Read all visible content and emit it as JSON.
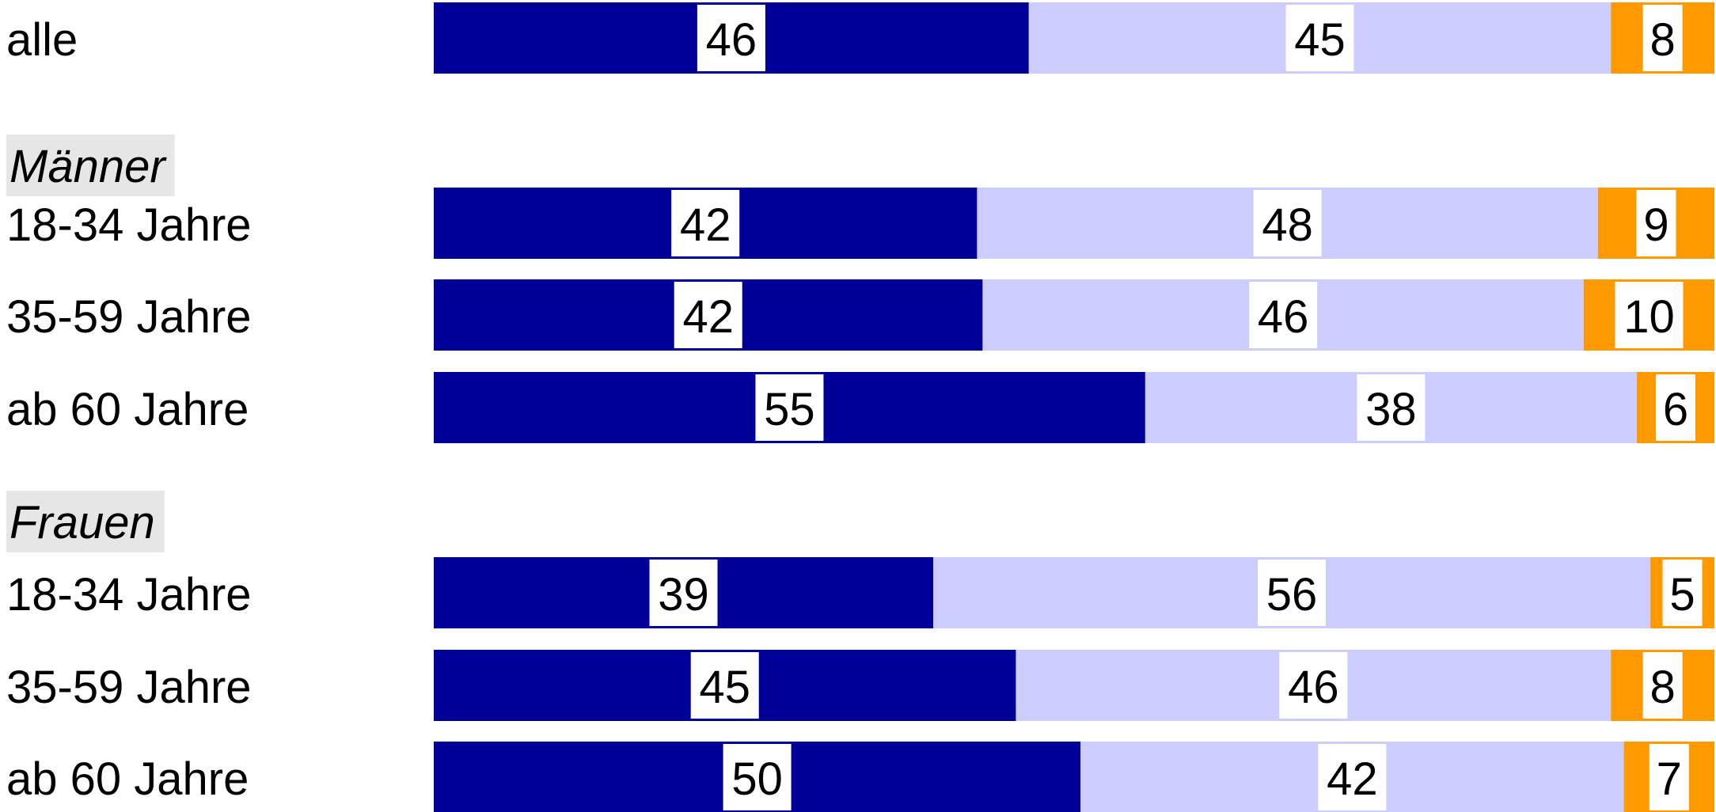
{
  "colors": {
    "series1": "#000099",
    "series2": "#ccccff",
    "series3": "#ff9900"
  },
  "chart_data": {
    "type": "bar",
    "orientation": "horizontal",
    "stacked": true,
    "legend": "none",
    "grid": false,
    "xlim": [
      0,
      100
    ],
    "rows": [
      {
        "label": "alle",
        "group": null,
        "values": [
          46,
          45,
          8
        ]
      },
      {
        "label": "18-34 Jahre",
        "group": "Männer",
        "values": [
          42,
          48,
          9
        ]
      },
      {
        "label": "35-59 Jahre",
        "group": "Männer",
        "values": [
          42,
          46,
          10
        ]
      },
      {
        "label": "ab 60 Jahre",
        "group": "Männer",
        "values": [
          55,
          38,
          6
        ]
      },
      {
        "label": "18-34 Jahre",
        "group": "Frauen",
        "values": [
          39,
          56,
          5
        ]
      },
      {
        "label": "35-59 Jahre",
        "group": "Frauen",
        "values": [
          45,
          46,
          8
        ]
      },
      {
        "label": "ab 60 Jahre",
        "group": "Frauen",
        "values": [
          50,
          42,
          7
        ]
      }
    ],
    "groups": [
      "Männer",
      "Frauen"
    ]
  }
}
